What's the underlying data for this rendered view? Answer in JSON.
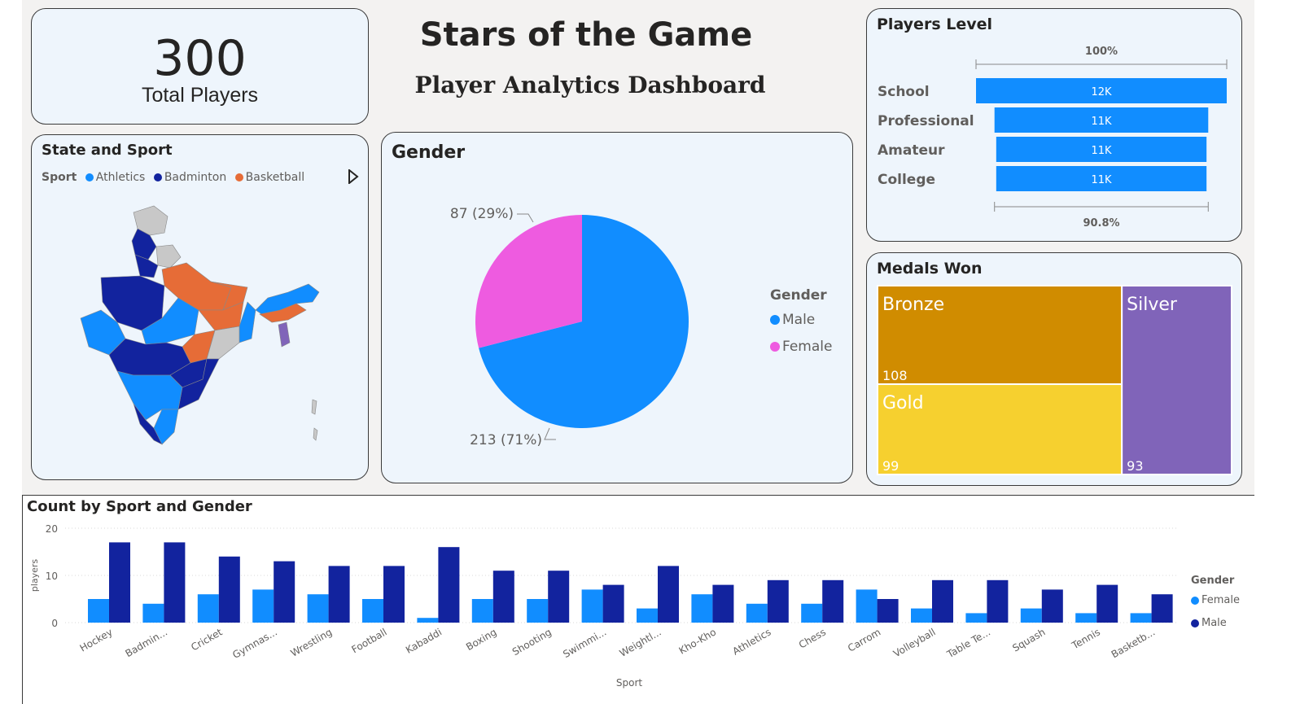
{
  "header": {
    "title": "Stars of the Game",
    "subtitle": "Player Analytics Dashboard"
  },
  "kpi": {
    "value": "300",
    "label": "Total Players"
  },
  "state_sport": {
    "title": "State and Sport",
    "legend_title": "Sport",
    "legend": [
      {
        "name": "Athletics",
        "color": "#118dff"
      },
      {
        "name": "Badminton",
        "color": "#12239e"
      },
      {
        "name": "Basketball",
        "color": "#e66c37"
      }
    ]
  },
  "colors": {
    "male": "#118dff",
    "female": "#e044a7",
    "female_pie": "#ee5be0",
    "bar_female": "#118dff",
    "bar_male": "#12239e",
    "level_bar": "#118dff",
    "bronze": "#d08c00",
    "gold": "#f6d02f",
    "silver": "#8064b9",
    "map_grey": "#c8c8c8"
  },
  "chart_data": [
    {
      "type": "pie",
      "title": "Gender",
      "legend_title": "Gender",
      "slices": [
        {
          "name": "Male",
          "value": 213,
          "label": "213 (71%)"
        },
        {
          "name": "Female",
          "value": 87,
          "label": "87 (29%)"
        }
      ]
    },
    {
      "type": "bar",
      "orientation": "horizontal",
      "title": "Players Level",
      "categories": [
        "School",
        "Professional",
        "Amateur",
        "College"
      ],
      "values": [
        12000,
        11000,
        11000,
        11000
      ],
      "data_labels": [
        "12K",
        "11K",
        "11K",
        "11K"
      ],
      "top_label": "100%",
      "bottom_label": "90.8%"
    },
    {
      "type": "treemap",
      "title": "Medals Won",
      "items": [
        {
          "name": "Bronze",
          "value": 108
        },
        {
          "name": "Gold",
          "value": 99
        },
        {
          "name": "Silver",
          "value": 93
        }
      ]
    },
    {
      "type": "bar",
      "title": "Count by Sport and Gender",
      "xlabel": "Sport",
      "ylabel": "players",
      "ylim": [
        0,
        20
      ],
      "yticks": [
        0,
        10,
        20
      ],
      "legend_title": "Gender",
      "legend_position": "right",
      "categories": [
        "Hockey",
        "Badmin...",
        "Cricket",
        "Gymnas...",
        "Wrestling",
        "Football",
        "Kabaddi",
        "Boxing",
        "Shooting",
        "Swimmi...",
        "Weightl...",
        "Kho-Kho",
        "Athletics",
        "Chess",
        "Carrom",
        "Volleyball",
        "Table Te...",
        "Squash",
        "Tennis",
        "Basketb..."
      ],
      "series": [
        {
          "name": "Female",
          "values": [
            5,
            4,
            6,
            7,
            6,
            5,
            1,
            5,
            5,
            7,
            3,
            6,
            4,
            4,
            7,
            3,
            2,
            3,
            2,
            2
          ]
        },
        {
          "name": "Male",
          "values": [
            17,
            17,
            14,
            13,
            12,
            12,
            16,
            11,
            11,
            8,
            12,
            8,
            9,
            9,
            5,
            9,
            9,
            7,
            8,
            6
          ]
        }
      ]
    }
  ]
}
